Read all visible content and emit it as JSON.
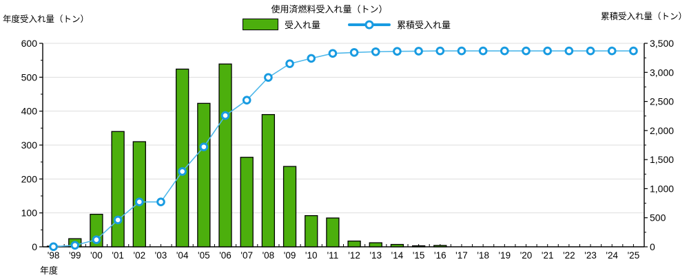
{
  "title": "使用済燃料受入れ量（トン）",
  "legend": {
    "bar": "受入れ量",
    "line": "累積受入れ量"
  },
  "colors": {
    "bar_fill": "#4CAF0D",
    "bar_border": "#000000",
    "line": "#4FB8EA",
    "marker_stroke": "#189BE1",
    "marker_fill": "#FFFFFF",
    "grid": "#DDDDDD",
    "axis": "#000000",
    "text": "#000000",
    "background": "#FFFFFF"
  },
  "chart_data": {
    "type": "bar+line",
    "title": "使用済燃料受入れ量（トン）",
    "legend_position": "top",
    "grid": "horizontal",
    "categories": [
      "'98",
      "'99",
      "'00",
      "'01",
      "'02",
      "'03",
      "'04",
      "'05",
      "'06",
      "'07",
      "'08",
      "'09",
      "'10",
      "'11",
      "'12",
      "'13",
      "'14",
      "'15",
      "'16",
      "'17",
      "'18",
      "'19",
      "'20",
      "'21",
      "'22",
      "'23",
      "'24",
      "'25"
    ],
    "series": [
      {
        "name": "受入れ量",
        "type": "bar",
        "axis": "left",
        "values": [
          2,
          24,
          96,
          340,
          310,
          0,
          524,
          423,
          539,
          264,
          390,
          237,
          92,
          85,
          17,
          12,
          7,
          3,
          4,
          0,
          0,
          0,
          0,
          0,
          0,
          0,
          0,
          0
        ]
      },
      {
        "name": "累積受入れ量",
        "type": "line",
        "axis": "right",
        "values": [
          2,
          26,
          122,
          462,
          772,
          772,
          1296,
          1719,
          2258,
          2522,
          2912,
          3149,
          3241,
          3326,
          3343,
          3355,
          3362,
          3365,
          3369,
          3369,
          3369,
          3369,
          3369,
          3369,
          3369,
          3369,
          3369,
          3369
        ]
      }
    ],
    "left_axis": {
      "label": "年度受入れ量（トン）",
      "min": 0,
      "max": 600,
      "major_tick": 100,
      "minor_tick": 50,
      "tick_labels": [
        "0",
        "100",
        "200",
        "300",
        "400",
        "500",
        "600"
      ]
    },
    "right_axis": {
      "label": "累積受入れ量（トン）",
      "min": 0,
      "max": 3500,
      "major_tick": 500,
      "minor_tick": 250,
      "tick_labels": [
        "0",
        "500",
        "1,000",
        "1,500",
        "2,000",
        "2,500",
        "3,000",
        "3,500"
      ]
    },
    "x_axis": {
      "label": "年度"
    }
  }
}
